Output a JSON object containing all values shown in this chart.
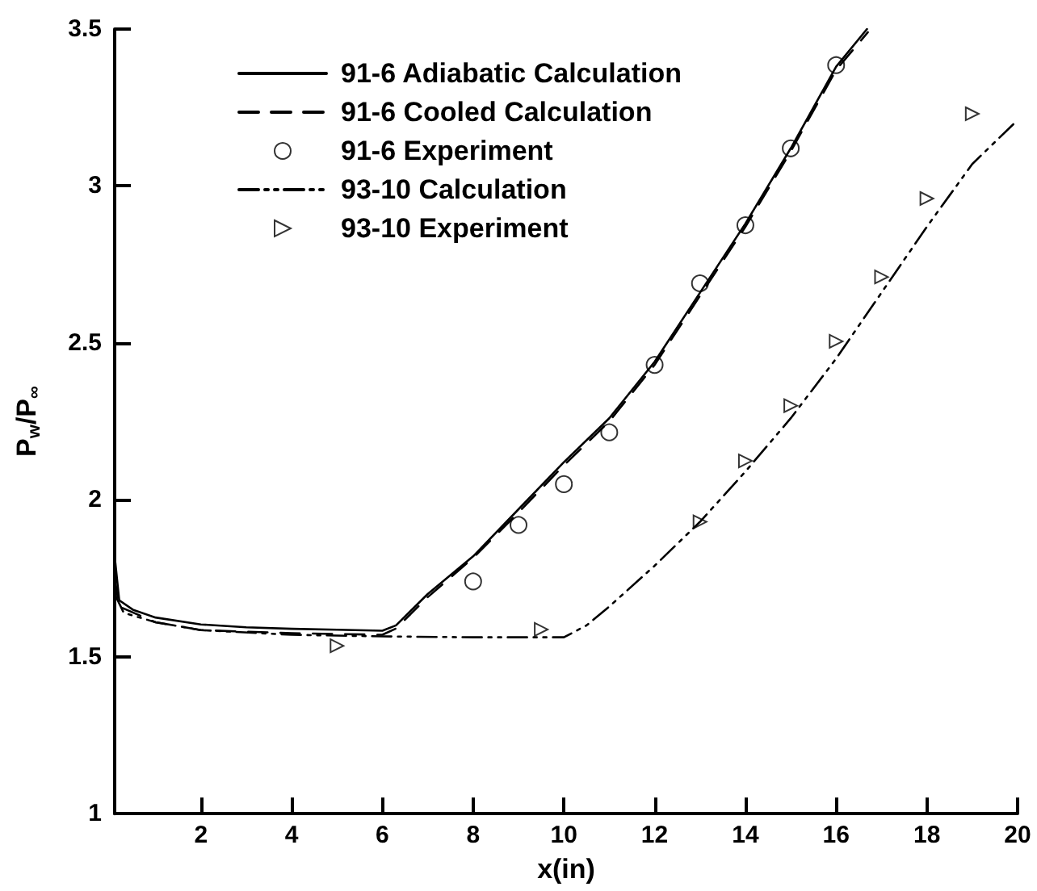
{
  "chart_data": {
    "type": "line",
    "xlabel": "x(in)",
    "ylabel": "P$_{w}$/P$_{∞}$",
    "xlim": [
      0.1,
      20
    ],
    "xticks": [
      2,
      4,
      6,
      8,
      10,
      12,
      14,
      16,
      18,
      20
    ],
    "ylim": [
      1,
      3.5
    ],
    "yticks": [
      1,
      1.5,
      2,
      2.5,
      3,
      3.5
    ],
    "grid": false,
    "legend": "top left",
    "series": [
      {
        "name": "91-6 Adiabatic Calculation",
        "color": "#000000",
        "line_style": "solid",
        "marker": "none",
        "x": [
          0.1,
          0.2,
          0.5,
          1,
          2,
          3,
          4,
          5,
          6,
          6.3,
          7,
          8,
          9,
          10,
          11,
          12,
          13,
          14,
          15,
          16,
          16.68
        ],
        "values": [
          1.82,
          1.68,
          1.65,
          1.625,
          1.603,
          1.594,
          1.589,
          1.586,
          1.583,
          1.6,
          1.7,
          1.82,
          1.97,
          2.12,
          2.26,
          2.44,
          2.66,
          2.88,
          3.12,
          3.38,
          3.5
        ]
      },
      {
        "name": "91-6 Cooled Calculation",
        "color": "#000000",
        "line_style": "dashed",
        "marker": "none",
        "x": [
          0.1,
          0.2,
          1,
          2,
          4,
          6,
          6.3,
          7,
          8,
          9,
          10,
          11,
          12,
          13,
          14,
          15,
          16,
          16.7
        ],
        "values": [
          1.75,
          1.66,
          1.61,
          1.585,
          1.575,
          1.57,
          1.59,
          1.69,
          1.815,
          1.96,
          2.11,
          2.25,
          2.43,
          2.65,
          2.87,
          3.11,
          3.37,
          3.49
        ]
      },
      {
        "name": "91-6 Experiment",
        "type": "scatter",
        "color": "#000000",
        "marker": "circle",
        "x": [
          8,
          9,
          10,
          11,
          12,
          13,
          14,
          15,
          16
        ],
        "values": [
          1.74,
          1.92,
          2.05,
          2.215,
          2.43,
          2.69,
          2.875,
          3.12,
          3.385
        ]
      },
      {
        "name": "93-10 Calculation",
        "color": "#000000",
        "line_style": "dashdot",
        "marker": "none",
        "x": [
          0.1,
          0.3,
          1,
          2,
          4,
          6,
          8,
          10,
          10.5,
          11,
          12,
          13,
          14,
          15,
          16,
          17,
          18,
          19,
          20
        ],
        "values": [
          1.7,
          1.64,
          1.61,
          1.585,
          1.57,
          1.565,
          1.562,
          1.562,
          1.6,
          1.66,
          1.79,
          1.93,
          2.09,
          2.26,
          2.45,
          2.66,
          2.87,
          3.07,
          3.21
        ]
      },
      {
        "name": "93-10 Experiment",
        "type": "scatter",
        "color": "#000000",
        "marker": "triangle",
        "x": [
          5,
          9.5,
          13,
          14,
          15,
          16,
          17,
          18,
          19
        ],
        "values": [
          1.535,
          1.587,
          1.93,
          2.124,
          2.3,
          2.505,
          2.71,
          2.96,
          3.23
        ]
      }
    ]
  }
}
